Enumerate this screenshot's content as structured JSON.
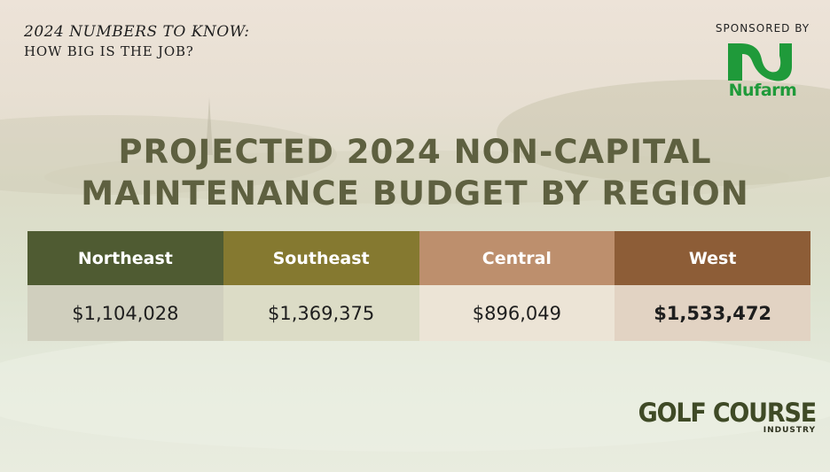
{
  "kicker": {
    "line1": "2024 NUMBERS TO KNOW:",
    "line2": "HOW BIG IS THE JOB?"
  },
  "sponsor": {
    "label": "SPONSORED BY",
    "brand": "Nufarm",
    "brand_color": "#1f9a3a"
  },
  "publisher": {
    "line1": "GOLF COURSE",
    "line2": "INDUSTRY"
  },
  "chart_data": {
    "type": "table",
    "title_lines": [
      "PROJECTED 2024 NON-CAPITAL",
      "MAINTENANCE BUDGET BY REGION"
    ],
    "columns": [
      {
        "region": "Northeast",
        "value": 1104028,
        "value_label": "$1,104,028",
        "header_color": "#4f5b32",
        "cell_color": "#d0cfbe",
        "emphasis": false
      },
      {
        "region": "Southeast",
        "value": 1369375,
        "value_label": "$1,369,375",
        "header_color": "#857930",
        "cell_color": "#dcdcc6",
        "emphasis": false
      },
      {
        "region": "Central",
        "value": 896049,
        "value_label": "$896,049",
        "header_color": "#bd8f6d",
        "cell_color": "#ece4d6",
        "emphasis": false
      },
      {
        "region": "West",
        "value": 1533472,
        "value_label": "$1,533,472",
        "header_color": "#8d5d37",
        "cell_color": "#e2d3c3",
        "emphasis": true
      }
    ]
  }
}
